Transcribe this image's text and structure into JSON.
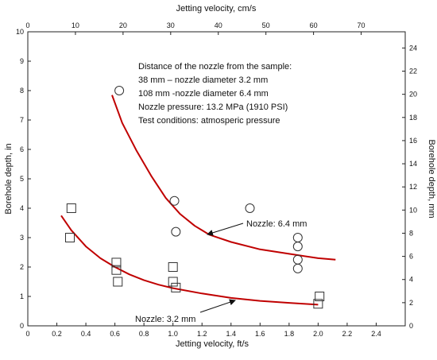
{
  "chart_data": {
    "type": "scatter",
    "title": "",
    "xlabel": "Jetting velocity, ft/s",
    "xlabel_top": "Jetting velocity, cm/s",
    "ylabel": "Borehole depth, in",
    "ylabel_right": "Borehole depth, mm",
    "xlim": [
      0,
      2.6
    ],
    "ylim": [
      0,
      10
    ],
    "xlim_top": [
      0,
      79.25
    ],
    "ylim_right": [
      0,
      25.4
    ],
    "x_ticks": [
      "0",
      "0.2",
      "0.4",
      "0.6",
      "0.8",
      "1.0",
      "1.2",
      "1.4",
      "1.6",
      "1.8",
      "2.0",
      "2.2",
      "2.4"
    ],
    "x_tick_values": [
      0,
      0.2,
      0.4,
      0.6,
      0.8,
      1.0,
      1.2,
      1.4,
      1.6,
      1.8,
      2.0,
      2.2,
      2.4
    ],
    "y_ticks": [
      "0",
      "1",
      "2",
      "3",
      "4",
      "5",
      "6",
      "7",
      "8",
      "9",
      "10"
    ],
    "y_tick_values": [
      0,
      1,
      2,
      3,
      4,
      5,
      6,
      7,
      8,
      9,
      10
    ],
    "x_top_ticks": [
      "0",
      "10",
      "20",
      "30",
      "40",
      "50",
      "60",
      "70"
    ],
    "x_top_tick_values": [
      0,
      10,
      20,
      30,
      40,
      50,
      60,
      70
    ],
    "y_right_ticks": [
      "0",
      "2",
      "4",
      "6",
      "8",
      "10",
      "12",
      "14",
      "16",
      "18",
      "20",
      "22",
      "24"
    ],
    "y_right_tick_values": [
      0,
      2,
      4,
      6,
      8,
      10,
      12,
      14,
      16,
      18,
      20,
      22,
      24
    ],
    "grid": false,
    "series": [
      {
        "name": "Nozzle: 6.4 mm",
        "marker": "circle",
        "points": [
          [
            0.63,
            8.0
          ],
          [
            1.01,
            4.25
          ],
          [
            1.02,
            3.2
          ],
          [
            1.53,
            4.0
          ],
          [
            1.86,
            3.0
          ],
          [
            1.86,
            2.7
          ],
          [
            1.86,
            2.25
          ],
          [
            1.86,
            1.95
          ]
        ],
        "fit": [
          [
            0.58,
            7.85
          ],
          [
            0.65,
            6.9
          ],
          [
            0.75,
            5.95
          ],
          [
            0.85,
            5.1
          ],
          [
            0.95,
            4.35
          ],
          [
            1.05,
            3.8
          ],
          [
            1.15,
            3.4
          ],
          [
            1.25,
            3.1
          ],
          [
            1.4,
            2.85
          ],
          [
            1.6,
            2.6
          ],
          [
            1.8,
            2.45
          ],
          [
            2.0,
            2.3
          ],
          [
            2.12,
            2.25
          ]
        ]
      },
      {
        "name": "Nozzle: 3.2 mm",
        "marker": "square",
        "points": [
          [
            0.3,
            4.0
          ],
          [
            0.29,
            3.0
          ],
          [
            0.61,
            2.15
          ],
          [
            0.61,
            1.9
          ],
          [
            0.62,
            1.5
          ],
          [
            1.0,
            2.0
          ],
          [
            1.0,
            1.5
          ],
          [
            1.02,
            1.3
          ],
          [
            2.01,
            1.0
          ],
          [
            2.0,
            0.75
          ]
        ],
        "fit": [
          [
            0.23,
            3.75
          ],
          [
            0.3,
            3.25
          ],
          [
            0.4,
            2.7
          ],
          [
            0.5,
            2.3
          ],
          [
            0.6,
            2.0
          ],
          [
            0.7,
            1.75
          ],
          [
            0.8,
            1.55
          ],
          [
            0.9,
            1.4
          ],
          [
            1.0,
            1.28
          ],
          [
            1.2,
            1.1
          ],
          [
            1.4,
            0.95
          ],
          [
            1.6,
            0.85
          ],
          [
            1.8,
            0.78
          ],
          [
            1.9,
            0.75
          ],
          [
            2.0,
            0.72
          ]
        ]
      }
    ],
    "fit_color": "#c00000",
    "marker_color": "#333333",
    "annotation_text": [
      "Distance of the nozzle from the sample:",
      "38 mm – nozzle diameter 3.2 mm",
      "108 mm -nozzle diameter 6.4 mm",
      "Nozzle pressure: 13.2 MPa (1910 PSI)",
      "Test conditions: atmosperic pressure"
    ],
    "arrow_labels": [
      {
        "text": "Nozzle: 6.4 mm",
        "target": [
          1.23,
          3.2
        ]
      },
      {
        "text": "Nozzle: 3.2 mm",
        "target": [
          1.45,
          0.85
        ]
      }
    ]
  }
}
